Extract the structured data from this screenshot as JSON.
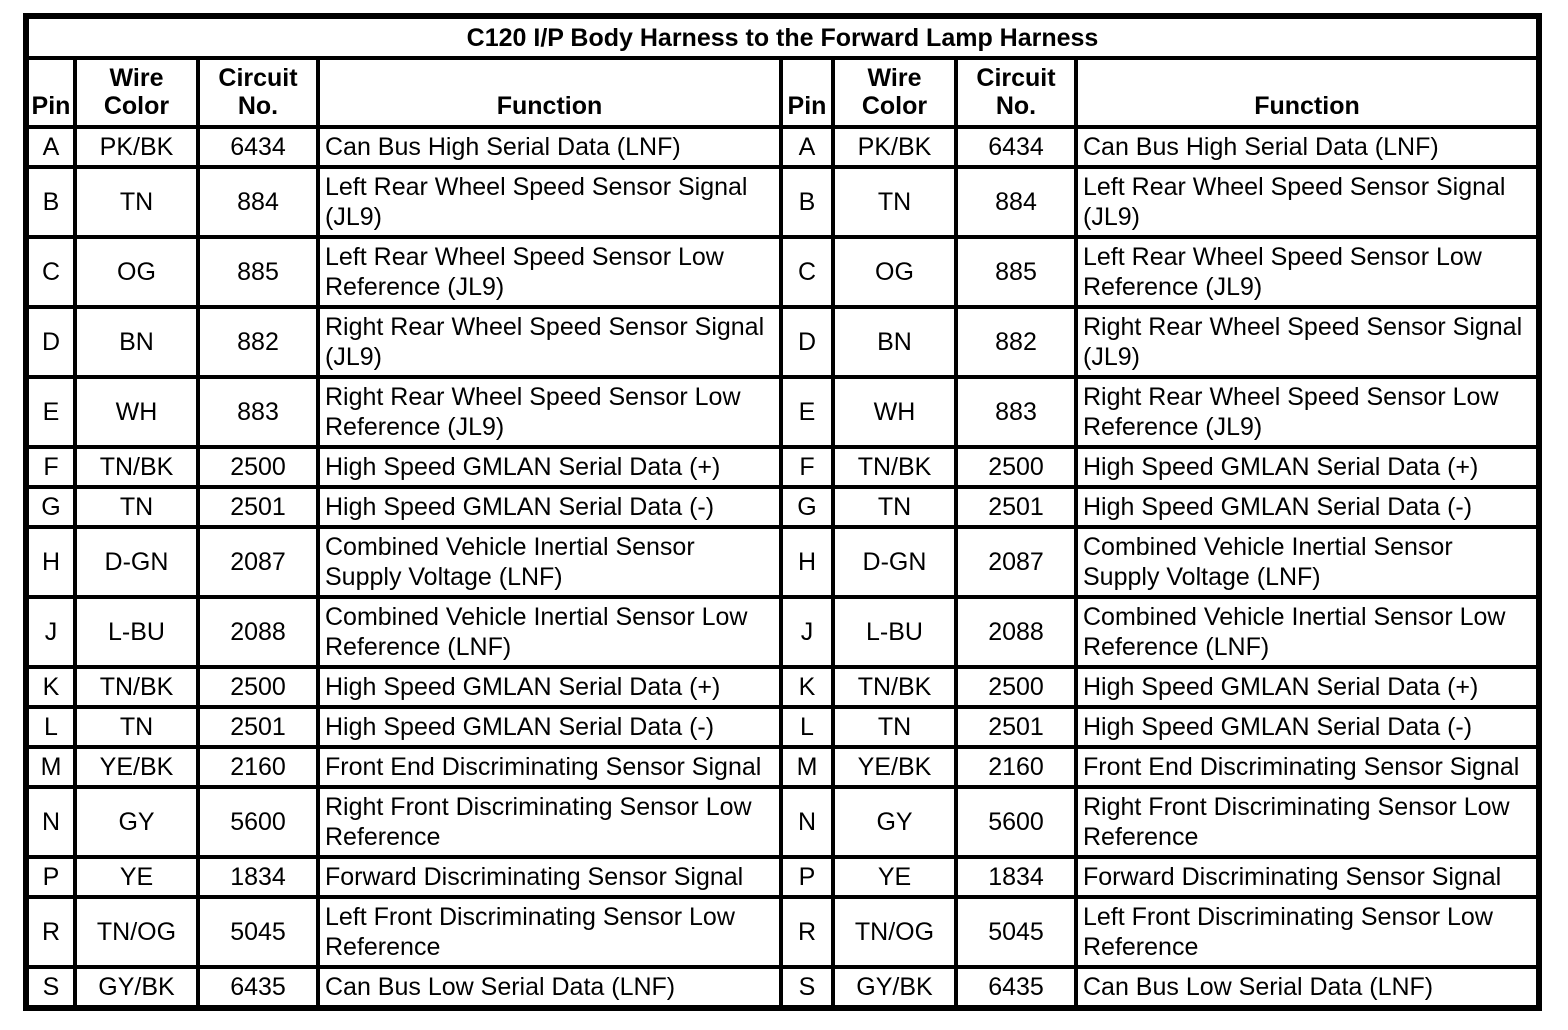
{
  "title": "C120 I/P Body Harness to the Forward Lamp Harness",
  "columns": [
    {
      "label": "Pin"
    },
    {
      "label": "Wire Color"
    },
    {
      "label": "Circuit No."
    },
    {
      "label": "Function"
    }
  ],
  "rows": [
    {
      "pin": "A",
      "wire_color": "PK/BK",
      "circuit_no": "6434",
      "function": "Can Bus High Serial Data (LNF)"
    },
    {
      "pin": "B",
      "wire_color": "TN",
      "circuit_no": "884",
      "function": "Left Rear Wheel Speed Sensor Signal (JL9)"
    },
    {
      "pin": "C",
      "wire_color": "OG",
      "circuit_no": "885",
      "function": "Left Rear Wheel Speed Sensor Low Reference (JL9)"
    },
    {
      "pin": "D",
      "wire_color": "BN",
      "circuit_no": "882",
      "function": "Right Rear Wheel Speed Sensor Signal (JL9)"
    },
    {
      "pin": "E",
      "wire_color": "WH",
      "circuit_no": "883",
      "function": "Right Rear Wheel Speed Sensor Low Reference (JL9)"
    },
    {
      "pin": "F",
      "wire_color": "TN/BK",
      "circuit_no": "2500",
      "function": "High Speed GMLAN Serial Data (+)"
    },
    {
      "pin": "G",
      "wire_color": "TN",
      "circuit_no": "2501",
      "function": "High Speed GMLAN Serial Data (-)"
    },
    {
      "pin": "H",
      "wire_color": "D-GN",
      "circuit_no": "2087",
      "function": "Combined Vehicle Inertial Sensor Supply Voltage (LNF)"
    },
    {
      "pin": "J",
      "wire_color": "L-BU",
      "circuit_no": "2088",
      "function": "Combined Vehicle Inertial Sensor Low Reference (LNF)"
    },
    {
      "pin": "K",
      "wire_color": "TN/BK",
      "circuit_no": "2500",
      "function": "High Speed GMLAN Serial Data (+)"
    },
    {
      "pin": "L",
      "wire_color": "TN",
      "circuit_no": "2501",
      "function": "High Speed GMLAN Serial Data (-)"
    },
    {
      "pin": "M",
      "wire_color": "YE/BK",
      "circuit_no": "2160",
      "function": "Front End Discriminating Sensor Signal"
    },
    {
      "pin": "N",
      "wire_color": "GY",
      "circuit_no": "5600",
      "function": "Right Front Discriminating Sensor Low Reference"
    },
    {
      "pin": "P",
      "wire_color": "YE",
      "circuit_no": "1834",
      "function": "Forward Discriminating Sensor Signal"
    },
    {
      "pin": "R",
      "wire_color": "TN/OG",
      "circuit_no": "5045",
      "function": "Left Front Discriminating Sensor Low Reference"
    },
    {
      "pin": "S",
      "wire_color": "GY/BK",
      "circuit_no": "6435",
      "function": "Can Bus Low Serial Data (LNF)"
    }
  ],
  "colors": {
    "border": "#000000",
    "background": "#ffffff",
    "text": "#000000"
  }
}
